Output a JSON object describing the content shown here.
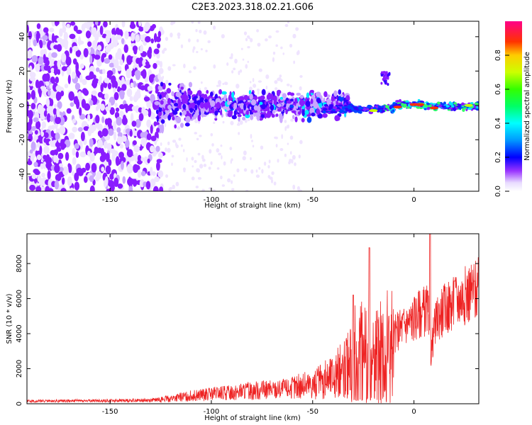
{
  "title": "C2E3.2023.318.02.21.G06",
  "chart_data": [
    {
      "type": "heatmap",
      "xlabel": "Height of straight line (km)",
      "ylabel": "Frequency (Hz)",
      "xlim": [
        -191,
        32
      ],
      "ylim": [
        -50,
        49
      ],
      "x_ticks": [
        -150,
        -100,
        -50,
        0
      ],
      "y_ticks": [
        -40,
        -20,
        0,
        20,
        40
      ],
      "colorbar": {
        "label": "Normalized spectral amplitude",
        "range": [
          0,
          1
        ],
        "ticks": [
          0.0,
          0.2,
          0.4,
          0.6,
          0.8
        ],
        "colormap": [
          "#ffffff",
          "#dcc8ff",
          "#8800ff",
          "#0000ff",
          "#00ffff",
          "#00ff00",
          "#ffff00",
          "#ff0000",
          "#ff0088"
        ]
      },
      "features": [
        {
          "x_range": [
            -191,
            -125
          ],
          "freq_range": [
            -50,
            49
          ],
          "amplitude": 0.08
        },
        {
          "x_range": [
            -125,
            -40
          ],
          "freq_range": [
            -10,
            10
          ],
          "amplitude": 0.2
        },
        {
          "x_range": [
            -40,
            32
          ],
          "freq_range": [
            -4,
            3
          ],
          "amplitude": 0.5
        },
        {
          "x_range": [
            -16,
            -12
          ],
          "freq_range": [
            12,
            20
          ],
          "amplitude": 0.15
        }
      ],
      "grid": false
    },
    {
      "type": "line",
      "xlabel": "Height of straight line (km)",
      "ylabel": "SNR (10 * v/v)",
      "xlim": [
        -191,
        32
      ],
      "ylim": [
        0,
        9700
      ],
      "x_ticks": [
        -150,
        -100,
        -50,
        0
      ],
      "y_ticks": [
        0,
        2000,
        4000,
        6000,
        8000
      ],
      "series": [
        {
          "color": "#ee2222",
          "x": [
            -191,
            -180,
            -170,
            -160,
            -150,
            -140,
            -130,
            -120,
            -110,
            -100,
            -90,
            -80,
            -70,
            -60,
            -50,
            -45,
            -40,
            -35,
            -32,
            -30,
            -28,
            -25,
            -22,
            -20,
            -18,
            -15,
            -12,
            -10,
            -8,
            -5,
            -2,
            0,
            3,
            5,
            7,
            8,
            10,
            12,
            15,
            18,
            20,
            25,
            30,
            32
          ],
          "y": [
            150,
            160,
            170,
            170,
            180,
            190,
            200,
            300,
            450,
            550,
            650,
            750,
            800,
            900,
            1100,
            1300,
            1600,
            2000,
            2600,
            3100,
            3000,
            3300,
            3600,
            3300,
            3200,
            3500,
            3700,
            3900,
            4200,
            4500,
            4700,
            4900,
            5200,
            5300,
            5400,
            2400,
            4300,
            5000,
            5400,
            5600,
            5800,
            6200,
            6500,
            6600
          ],
          "peaks": [
            {
              "x": -22,
              "y": 8900
            },
            {
              "x": 8,
              "y": 9700
            },
            {
              "x": -30,
              "y": 6200
            },
            {
              "x": 20,
              "y": 7000
            }
          ]
        }
      ],
      "grid": false
    }
  ]
}
